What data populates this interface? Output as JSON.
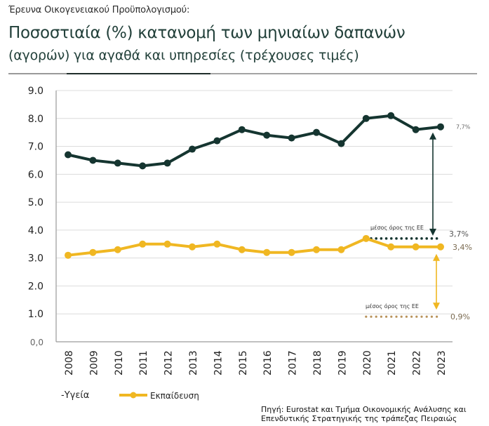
{
  "header": {
    "survey_label": "Έρευνα Οικογενειακού Προϋπολογισμού:",
    "title_line1": "Ποσοστιαία (%) κατανομή των μηνιαίων δαπανών",
    "title_line2": "(αγορών) για αγαθά και υπηρεσίες (τρέχουσες τιμές)"
  },
  "colors": {
    "health": "#153530",
    "education": "#f0b722",
    "eu_health_line": "#153530",
    "eu_education_line": "#b8925a",
    "grid": "#dcdcdc",
    "axis": "#9a9a9a"
  },
  "chart_data": {
    "type": "line",
    "title": "Ποσοστιαία (%) κατανομή των μηνιαίων δαπανών (αγορών) για αγαθά και υπηρεσίες (τρέχουσες τιμές)",
    "xlabel": "",
    "ylabel": "",
    "x": [
      "2008",
      "2009",
      "2010",
      "2011",
      "2012",
      "2013",
      "2014",
      "2015",
      "2016",
      "2017",
      "2018",
      "2019",
      "2020",
      "2021",
      "2022",
      "2023"
    ],
    "ylim": [
      0,
      9
    ],
    "y_ticks": [
      "0,0",
      "1.0",
      "2.0",
      "3.0",
      "4.0",
      "5.0",
      "6.0",
      "7.0",
      "8.0",
      "9.0"
    ],
    "grid": true,
    "series": [
      {
        "name": "Υγεία",
        "values": [
          6.7,
          6.5,
          6.4,
          6.3,
          6.4,
          6.9,
          7.2,
          7.6,
          7.4,
          7.3,
          7.5,
          7.1,
          8.0,
          8.1,
          7.6,
          7.7
        ]
      },
      {
        "name": "Εκπαίδευση",
        "values": [
          3.1,
          3.2,
          3.3,
          3.5,
          3.5,
          3.4,
          3.5,
          3.3,
          3.2,
          3.2,
          3.3,
          3.3,
          3.7,
          3.4,
          3.4,
          3.4
        ]
      }
    ],
    "annotations": {
      "health_end_label": "7,7%",
      "eu_health": {
        "label": "μέσος όρος της ΕΕ",
        "value": 3.7,
        "value_label": "3,7%",
        "from_year": "2020",
        "to_year": "2023"
      },
      "education_end_label": "3,4%",
      "eu_education": {
        "label": "μέσος όρος της ΕΕ",
        "value": 0.9,
        "value_label": "0,9%",
        "from_year": "2020",
        "to_year": "2023"
      }
    },
    "legend": {
      "position": "bottom-left",
      "items": [
        {
          "label": "-Υγεία"
        },
        {
          "label": "Εκπαίδευση"
        }
      ]
    }
  },
  "source": {
    "line1": "Πηγή: Eurostat και Τμήμα Οικονομικής Ανάλυσης και",
    "line2": "Επενδυτικής Στρατηγικής της τράπεζας Πειραιώς"
  }
}
